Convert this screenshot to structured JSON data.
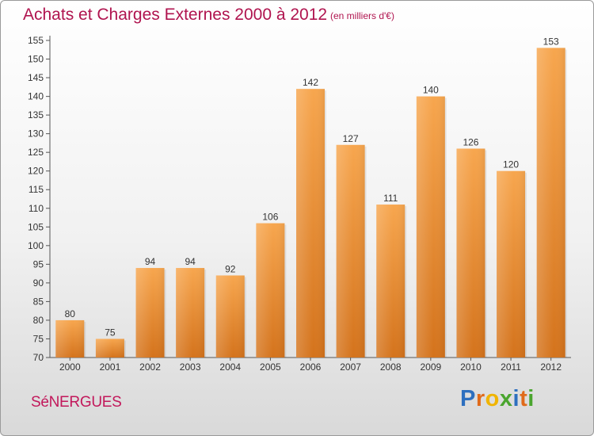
{
  "title": "Achats et Charges Externes 2000 à 2012",
  "subtitle": "(en milliers d'€)",
  "place": "SéNERGUES",
  "logo": {
    "letters": [
      "P",
      "r",
      "o",
      "x",
      "i",
      "t",
      "i"
    ],
    "colors": [
      "#2d6fbf",
      "#e06a1a",
      "#f0b400",
      "#4aa52e",
      "#2d6fbf",
      "#e06a1a",
      "#4aa52e"
    ]
  },
  "chart_data": {
    "type": "bar",
    "categories": [
      "2000",
      "2001",
      "2002",
      "2003",
      "2004",
      "2005",
      "2006",
      "2007",
      "2008",
      "2009",
      "2010",
      "2011",
      "2012"
    ],
    "values": [
      80,
      75,
      94,
      94,
      92,
      106,
      142,
      127,
      111,
      140,
      126,
      120,
      153
    ],
    "ylim": [
      70,
      155
    ],
    "yticks": [
      70,
      75,
      80,
      85,
      90,
      95,
      100,
      105,
      110,
      115,
      120,
      125,
      130,
      135,
      140,
      145,
      150,
      155
    ],
    "grid": false,
    "bar_color": "#f0a050",
    "data_labels": true
  }
}
